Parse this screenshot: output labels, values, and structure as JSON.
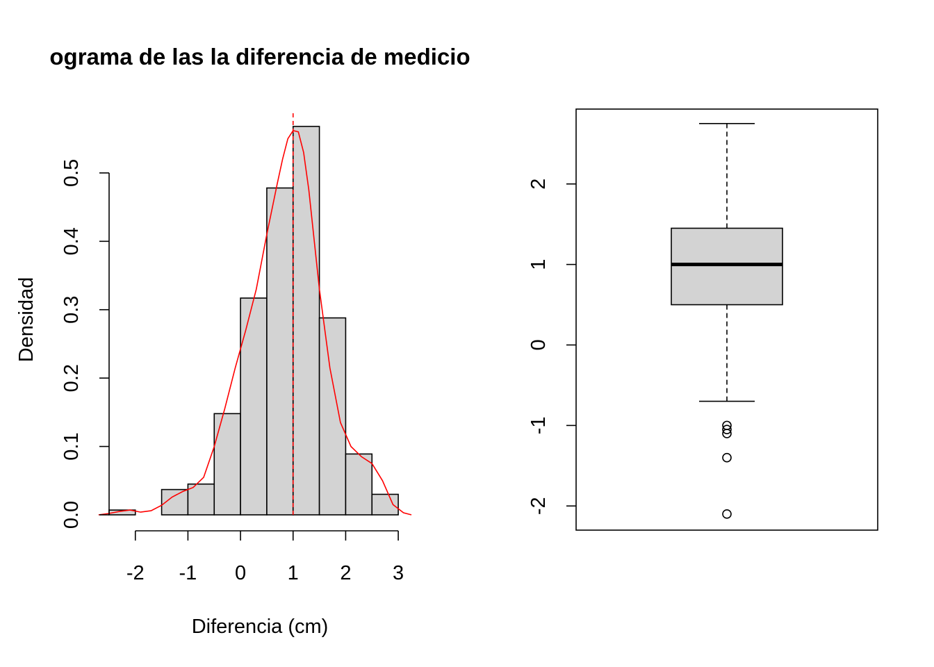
{
  "colors": {
    "bar_fill": "#d3d3d3",
    "stroke": "#000000",
    "density_line": "#ff0000",
    "mean_line": "#ff0000",
    "background": "#ffffff"
  },
  "chart_data": [
    {
      "type": "histogram",
      "title": "ograma de las la diferencia de medicio",
      "xlabel": "Diferencia (cm)",
      "ylabel": "Densidad",
      "xlim": [
        -2.75,
        3.25
      ],
      "ylim": [
        0,
        0.57
      ],
      "x_ticks": [
        -2,
        -1,
        0,
        1,
        2,
        3
      ],
      "x_tick_labels": [
        "-2",
        "-1",
        "0",
        "1",
        "2",
        "3"
      ],
      "y_ticks": [
        0.0,
        0.1,
        0.2,
        0.3,
        0.4,
        0.5
      ],
      "y_tick_labels": [
        "0.0",
        "0.1",
        "0.2",
        "0.3",
        "0.4",
        "0.5"
      ],
      "bin_edges": [
        -2.5,
        -2.0,
        -1.5,
        -1.0,
        -0.5,
        0.0,
        0.5,
        1.0,
        1.5,
        2.0,
        2.5,
        3.0
      ],
      "densities": [
        0.007,
        0.0,
        0.037,
        0.045,
        0.148,
        0.317,
        0.478,
        0.568,
        0.288,
        0.089,
        0.03
      ],
      "density_curve": {
        "x": [
          -2.7,
          -2.5,
          -2.3,
          -2.1,
          -1.9,
          -1.7,
          -1.5,
          -1.3,
          -1.1,
          -0.9,
          -0.7,
          -0.5,
          -0.3,
          -0.1,
          0.1,
          0.3,
          0.5,
          0.7,
          0.8,
          0.9,
          1.0,
          1.1,
          1.2,
          1.3,
          1.5,
          1.7,
          1.9,
          2.1,
          2.3,
          2.5,
          2.7,
          2.9,
          3.1,
          3.25
        ],
        "y": [
          0.0,
          0.002,
          0.005,
          0.007,
          0.004,
          0.006,
          0.014,
          0.026,
          0.034,
          0.04,
          0.055,
          0.1,
          0.155,
          0.215,
          0.27,
          0.33,
          0.41,
          0.485,
          0.52,
          0.55,
          0.562,
          0.56,
          0.53,
          0.475,
          0.33,
          0.215,
          0.135,
          0.1,
          0.085,
          0.075,
          0.05,
          0.015,
          0.003,
          0.0
        ]
      },
      "mean_line_x": 1.0
    },
    {
      "type": "boxplot",
      "ylim": [
        -2.3,
        2.93
      ],
      "y_ticks": [
        -2,
        -1,
        0,
        1,
        2
      ],
      "y_tick_labels": [
        "-2",
        "-1",
        "0",
        "1",
        "2"
      ],
      "whisker_low": -0.7,
      "q1": 0.5,
      "median": 1.0,
      "q3": 1.45,
      "whisker_high": 2.75,
      "outliers": [
        -1.0,
        -1.05,
        -1.1,
        -1.4,
        -2.1
      ]
    }
  ]
}
